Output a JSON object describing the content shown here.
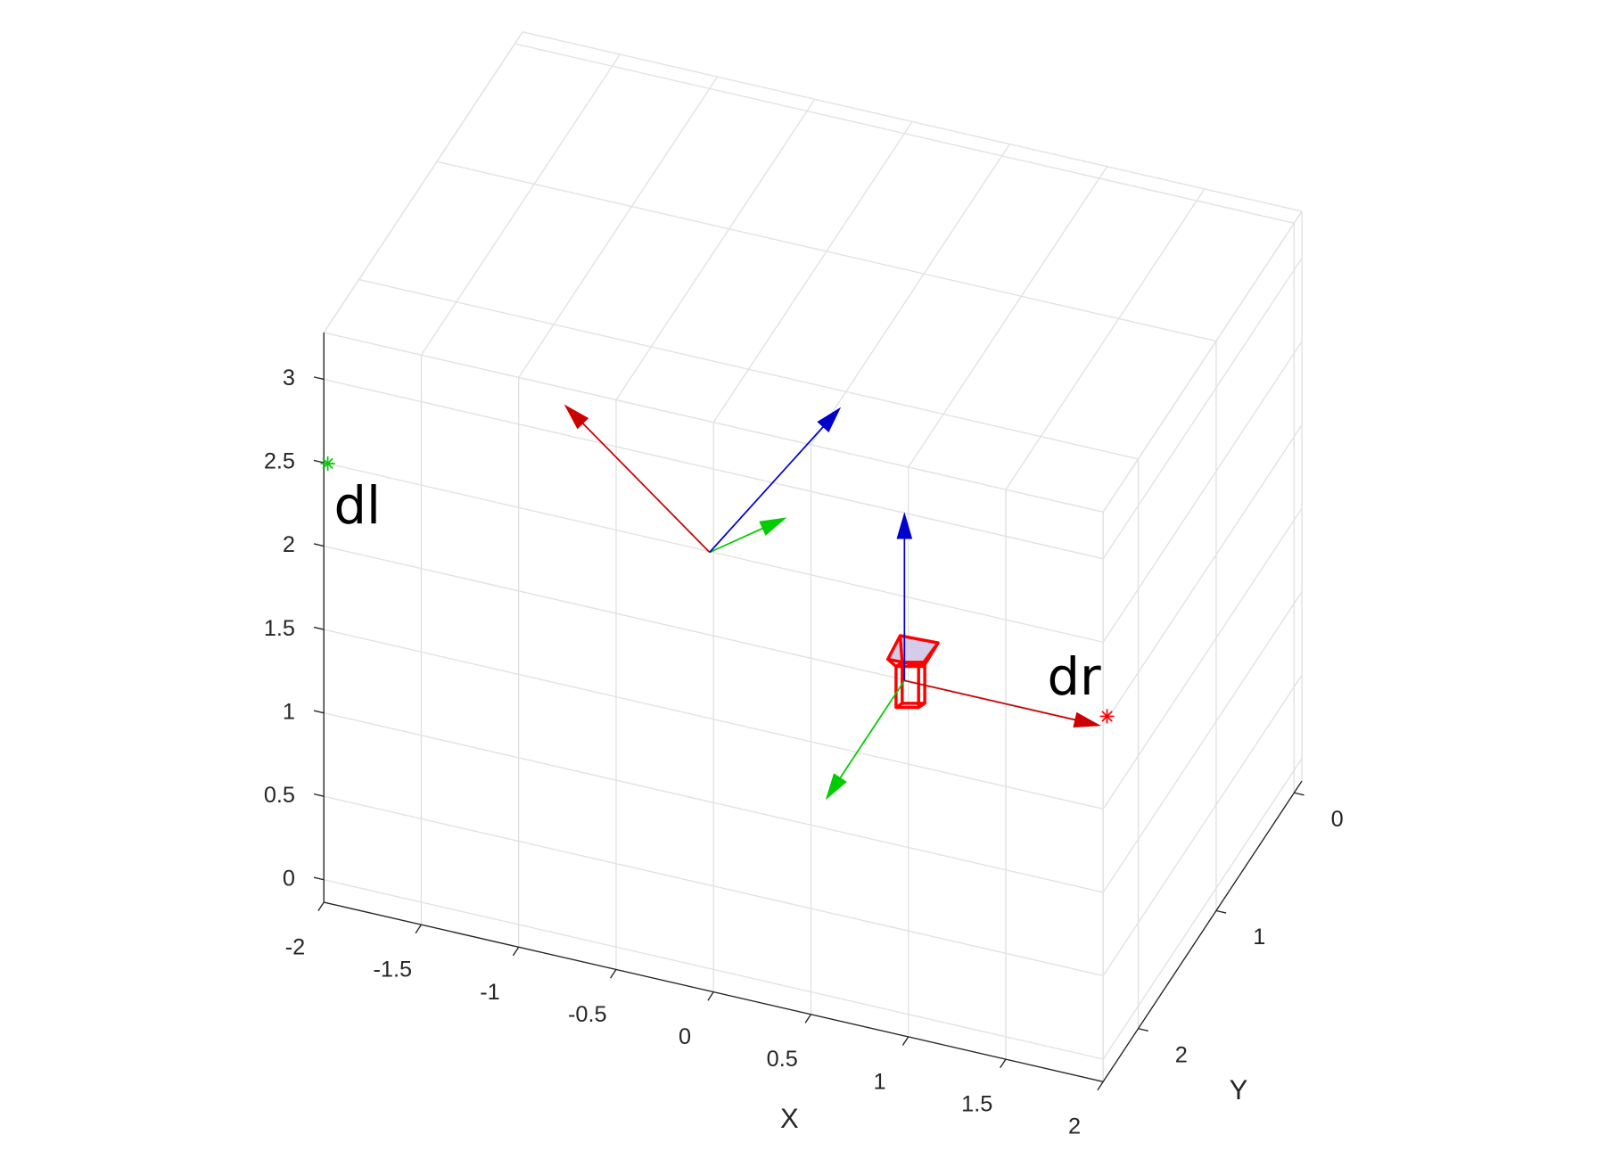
{
  "chart_data": {
    "type": "quiver3",
    "xlabel": "X",
    "ylabel": "Y",
    "xlim": [
      -2,
      2
    ],
    "ylim": [
      -0.1,
      2.45
    ],
    "zlim": [
      -0.135,
      3.28
    ],
    "xticks": [
      -2,
      -1.5,
      -1,
      -0.5,
      0,
      0.5,
      1,
      1.5,
      2
    ],
    "yticks": [
      0,
      1,
      2
    ],
    "zticks": [
      0,
      0.5,
      1,
      1.5,
      2,
      2.5,
      3
    ],
    "grid": true,
    "series": [
      {
        "color": "#cc0000",
        "x": [
          -1,
          0
        ],
        "y": [
          0,
          0
        ],
        "z": [
          0.5,
          0
        ],
        "u": [
          -0.74,
          1
        ],
        "v": [
          0,
          0
        ],
        "w": [
          0.68,
          0
        ]
      },
      {
        "color": "#00cc00",
        "x": [
          -1,
          0
        ],
        "y": [
          0,
          0
        ],
        "z": [
          0.5,
          0
        ],
        "u": [
          0.3,
          0
        ],
        "v": [
          -0.22,
          1
        ],
        "w": [
          0.13,
          0
        ]
      },
      {
        "color": "#0000cc",
        "x": [
          -1,
          0
        ],
        "y": [
          0,
          0
        ],
        "z": [
          0.5,
          0
        ],
        "u": [
          0.5,
          0
        ],
        "v": [
          -0.42,
          0
        ],
        "w": [
          0.7,
          1
        ]
      }
    ],
    "points": [
      {
        "label": "dl",
        "x": -2,
        "y": 2.4,
        "z": 2.46,
        "color": "#00cc00"
      },
      {
        "label": "dr",
        "x": 2,
        "y": 2.4,
        "z": 2.02,
        "color": "#ff0000"
      }
    ]
  }
}
